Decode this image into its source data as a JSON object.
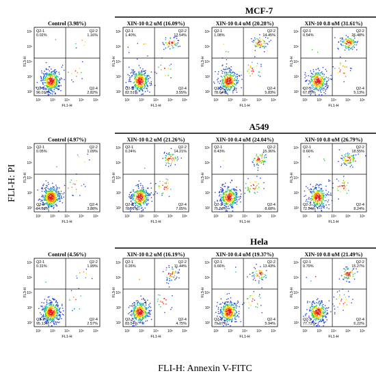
{
  "figure": {
    "y_axis_title": "FLI-H: PI",
    "x_axis_title": "FLI-H: Annexin V-FITC"
  },
  "chart_data": {
    "type": "scatter",
    "description_kind": "flow cytometry apoptosis quadrant plots (Annexin V-FITC / PI)",
    "cell_lines": [
      {
        "name": "MCF-7",
        "plots": [
          {
            "title": "Control (3.98%)",
            "xlabel": "FL1-H",
            "ylabel": "FL3-H",
            "quadrants": {
              "Q2-1": "0.02%",
              "Q2-2": "1.16%",
              "Q2-3": "96.01%",
              "Q2-4": "2.82%"
            }
          },
          {
            "title": "XIN-10 0.2 uM (16.09%)",
            "xlabel": "FL1-H",
            "ylabel": "FL3-H",
            "quadrants": {
              "Q2-1": "1.40%",
              "Q2-2": "12.54%",
              "Q2-3": "82.51%",
              "Q2-4": "3.55%"
            }
          },
          {
            "title": "XIN-10 0.4 uM (20.28%)",
            "xlabel": "FL1-H",
            "ylabel": "FL3-H",
            "quadrants": {
              "Q2-1": "1.08%",
              "Q2-2": "14.45%",
              "Q2-3": "78.64%",
              "Q2-4": "5.83%"
            }
          },
          {
            "title": "XIN-10 0.8 uM (31.61%)",
            "xlabel": "FL1-H",
            "ylabel": "FL3-H",
            "quadrants": {
              "Q2-1": "0.54%",
              "Q2-2": "26.48%",
              "Q2-3": "67.85%",
              "Q2-4": "5.13%"
            }
          }
        ]
      },
      {
        "name": "A549",
        "plots": [
          {
            "title": "Control (4.97%)",
            "xlabel": "FL1-H",
            "ylabel": "FL3-H",
            "quadrants": {
              "Q2-1": "0.05%",
              "Q2-2": "1.09%",
              "Q2-3": "94.98%",
              "Q2-4": "3.88%"
            }
          },
          {
            "title": "XIN-10 0.2 uM (21.26%)",
            "xlabel": "FL1-H",
            "ylabel": "FL3-H",
            "quadrants": {
              "Q2-1": "0.24%",
              "Q2-2": "14.21%",
              "Q2-3": "78.51%",
              "Q2-4": "7.05%"
            }
          },
          {
            "title": "XIN-10 0.4 uM (24.04%)",
            "xlabel": "FL1-H",
            "ylabel": "FL3-H",
            "quadrants": {
              "Q2-1": "0.43%",
              "Q2-2": "15.36%",
              "Q2-3": "75.53%",
              "Q2-4": "8.68%"
            }
          },
          {
            "title": "XIN-10 0.8 uM (26.79%)",
            "xlabel": "FL1-H",
            "ylabel": "FL3-H",
            "quadrants": {
              "Q2-1": "0.66%",
              "Q2-2": "18.55%",
              "Q2-3": "72.54%",
              "Q2-4": "8.24%"
            }
          }
        ]
      },
      {
        "name": "Hela",
        "plots": [
          {
            "title": "Control (4.56%)",
            "xlabel": "FL1-H",
            "ylabel": "FL3-H",
            "quadrants": {
              "Q2-1": "0.31%",
              "Q2-2": "1.99%",
              "Q2-3": "95.13%",
              "Q2-4": "2.57%"
            }
          },
          {
            "title": "XIN-10 0.2 uM (16.19%)",
            "xlabel": "FL1-H",
            "ylabel": "FL3-H",
            "quadrants": {
              "Q2-1": "0.26%",
              "Q2-2": "11.44%",
              "Q2-3": "83.54%",
              "Q2-4": "4.75%"
            }
          },
          {
            "title": "XIN-10 0.4 uM (19.37%)",
            "xlabel": "FL1-H",
            "ylabel": "FL3-H",
            "quadrants": {
              "Q2-1": "0.66%",
              "Q2-2": "13.43%",
              "Q2-3": "79.97%",
              "Q2-4": "5.94%"
            }
          },
          {
            "title": "XIN-10 0.8 uM (21.49%)",
            "xlabel": "FL1-H",
            "ylabel": "FL3-H",
            "quadrants": {
              "Q2-1": "0.79%",
              "Q2-2": "15.27%",
              "Q2-3": "77.72%",
              "Q2-4": "6.22%"
            }
          }
        ]
      }
    ]
  }
}
